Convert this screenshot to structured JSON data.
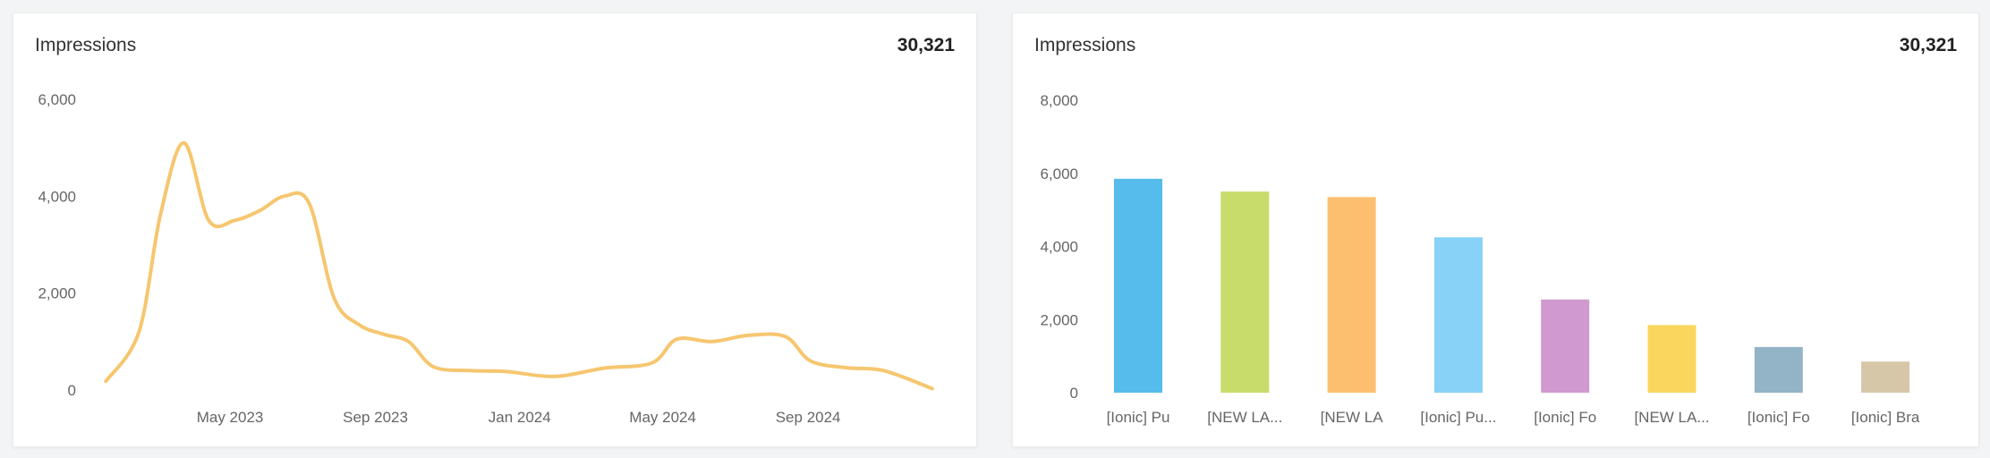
{
  "charts": [
    {
      "title": "Impressions",
      "total": "30,321",
      "chart_data": {
        "type": "line",
        "title": "Impressions",
        "xlabel": "",
        "ylabel": "",
        "ylim": [
          0,
          6000
        ],
        "yticks": [
          {
            "value": 0,
            "label": "0"
          },
          {
            "value": 2000,
            "label": "2,000"
          },
          {
            "value": 4000,
            "label": "4,000"
          },
          {
            "value": 6000,
            "label": "6,000"
          }
        ],
        "xlim": [
          "2023-01-15",
          "2024-12-31"
        ],
        "xticks": [
          {
            "date": "2023-05-01",
            "label": "May 2023"
          },
          {
            "date": "2023-09-01",
            "label": "Sep 2023"
          },
          {
            "date": "2024-01-01",
            "label": "Jan 2024"
          },
          {
            "date": "2024-05-01",
            "label": "May 2024"
          },
          {
            "date": "2024-09-01",
            "label": "Sep 2024"
          }
        ],
        "grid": false,
        "line_color": "#f6c66f",
        "points": [
          {
            "x": "2023-01-16",
            "y": 180
          },
          {
            "x": "2023-02-13",
            "y": 1200
          },
          {
            "x": "2023-03-03",
            "y": 3600
          },
          {
            "x": "2023-03-23",
            "y": 5100
          },
          {
            "x": "2023-04-13",
            "y": 3500
          },
          {
            "x": "2023-05-05",
            "y": 3500
          },
          {
            "x": "2023-05-26",
            "y": 3700
          },
          {
            "x": "2023-06-16",
            "y": 4000
          },
          {
            "x": "2023-07-07",
            "y": 3850
          },
          {
            "x": "2023-07-28",
            "y": 1900
          },
          {
            "x": "2023-08-18",
            "y": 1350
          },
          {
            "x": "2023-09-08",
            "y": 1150
          },
          {
            "x": "2023-09-29",
            "y": 1000
          },
          {
            "x": "2023-10-20",
            "y": 480
          },
          {
            "x": "2023-11-20",
            "y": 400
          },
          {
            "x": "2023-12-21",
            "y": 380
          },
          {
            "x": "2024-01-31",
            "y": 280
          },
          {
            "x": "2024-03-12",
            "y": 450
          },
          {
            "x": "2024-04-22",
            "y": 560
          },
          {
            "x": "2024-05-13",
            "y": 1050
          },
          {
            "x": "2024-06-12",
            "y": 1000
          },
          {
            "x": "2024-07-13",
            "y": 1130
          },
          {
            "x": "2024-08-13",
            "y": 1100
          },
          {
            "x": "2024-09-03",
            "y": 600
          },
          {
            "x": "2024-10-04",
            "y": 460
          },
          {
            "x": "2024-11-04",
            "y": 400
          },
          {
            "x": "2024-12-15",
            "y": 30
          }
        ]
      }
    },
    {
      "title": "Impressions",
      "total": "30,321",
      "chart_data": {
        "type": "bar",
        "title": "Impressions",
        "xlabel": "",
        "ylabel": "",
        "ylim": [
          0,
          8000
        ],
        "yticks": [
          {
            "value": 0,
            "label": "0"
          },
          {
            "value": 2000,
            "label": "2,000"
          },
          {
            "value": 4000,
            "label": "4,000"
          },
          {
            "value": 6000,
            "label": "6,000"
          },
          {
            "value": 8000,
            "label": "8,000"
          }
        ],
        "grid": false,
        "categories": [
          "[Ionic] Pu",
          "[NEW LA...",
          "[NEW LA",
          "[Ionic] Pu...",
          "[Ionic] Fo",
          "[NEW LA...",
          "[Ionic] Fo",
          "[Ionic] Bra"
        ],
        "values": [
          5850,
          5500,
          5350,
          4250,
          2550,
          1850,
          1250,
          850
        ],
        "colors": [
          "#56bcec",
          "#c7dc6a",
          "#fcbf6f",
          "#88d2f8",
          "#d09ad0",
          "#fbd65e",
          "#93b4c7",
          "#d6c7a8"
        ]
      }
    }
  ]
}
